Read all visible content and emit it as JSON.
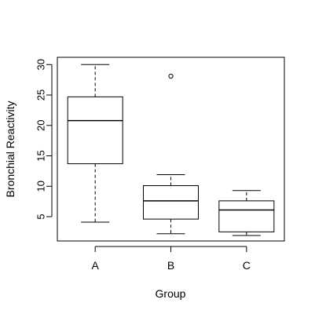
{
  "chart_data": {
    "type": "boxplot",
    "title": "",
    "xlabel": "Group",
    "ylabel": "Bronchial Reactivity",
    "ylim": [
      1,
      31.2
    ],
    "y_ticks": [
      5,
      10,
      15,
      20,
      25,
      30
    ],
    "grid": false,
    "legend": "none",
    "categories": [
      "A",
      "B",
      "C"
    ],
    "boxes": [
      {
        "name": "A",
        "whisker_low": 4.1,
        "q1": 13.7,
        "median": 20.8,
        "q3": 24.7,
        "whisker_high": 30.0,
        "outliers": []
      },
      {
        "name": "B",
        "whisker_low": 2.2,
        "q1": 4.6,
        "median": 7.6,
        "q3": 10.1,
        "whisker_high": 11.9,
        "outliers": [
          28.1
        ]
      },
      {
        "name": "C",
        "whisker_low": 1.9,
        "q1": 2.5,
        "median": 6.1,
        "q3": 7.6,
        "whisker_high": 9.3,
        "outliers": []
      }
    ],
    "colors": {
      "box_fill": "#ffffff",
      "stroke": "#000000"
    }
  }
}
